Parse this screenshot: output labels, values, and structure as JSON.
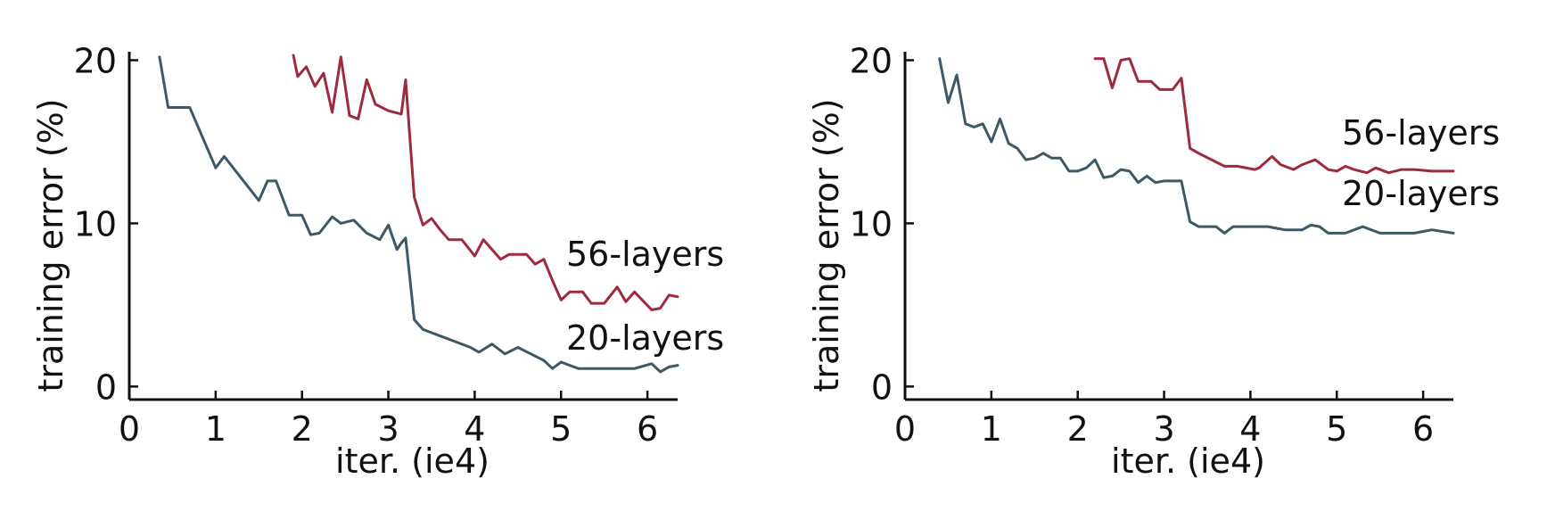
{
  "chart_data": [
    {
      "type": "line",
      "xlabel": "iter. (ie4)",
      "ylabel": "training error (%)",
      "xlim": [
        0,
        6.35
      ],
      "ylim": [
        -0.8,
        20.3
      ],
      "xticks": [
        0,
        1,
        2,
        3,
        4,
        5,
        6
      ],
      "yticks": [
        0,
        10,
        20
      ],
      "grid": false,
      "legend": "inline labels at line ends",
      "series": [
        {
          "name": "56-layers",
          "color": "#9e2a3e",
          "x": [
            1.9,
            1.95,
            2.05,
            2.15,
            2.25,
            2.35,
            2.45,
            2.55,
            2.65,
            2.75,
            2.85,
            3.0,
            3.15,
            3.2,
            3.3,
            3.4,
            3.5,
            3.6,
            3.7,
            3.85,
            4.0,
            4.1,
            4.3,
            4.4,
            4.6,
            4.7,
            4.8,
            4.9,
            5.0,
            5.1,
            5.25,
            5.35,
            5.5,
            5.65,
            5.75,
            5.85,
            6.05,
            6.15,
            6.25,
            6.35
          ],
          "y": [
            20.3,
            19.0,
            19.6,
            18.4,
            19.2,
            16.8,
            20.2,
            16.6,
            16.4,
            18.8,
            17.3,
            16.9,
            16.7,
            18.8,
            11.6,
            9.9,
            10.3,
            9.6,
            9.0,
            9.0,
            8.0,
            9.0,
            7.8,
            8.1,
            8.1,
            7.5,
            7.8,
            6.5,
            5.3,
            5.8,
            5.8,
            5.1,
            5.1,
            6.1,
            5.2,
            5.8,
            4.7,
            4.8,
            5.6,
            5.5
          ]
        },
        {
          "name": "20-layers",
          "color": "#3e5866",
          "x": [
            0.35,
            0.45,
            0.55,
            0.7,
            1.0,
            1.1,
            1.5,
            1.6,
            1.7,
            1.85,
            2.0,
            2.1,
            2.2,
            2.35,
            2.45,
            2.6,
            2.75,
            2.9,
            3.0,
            3.1,
            3.15,
            3.2,
            3.3,
            3.4,
            3.5,
            3.6,
            3.7,
            3.85,
            3.95,
            4.05,
            4.2,
            4.35,
            4.5,
            4.65,
            4.8,
            4.9,
            5.0,
            5.1,
            5.2,
            5.4,
            5.6,
            5.85,
            6.05,
            6.15,
            6.25,
            6.35
          ],
          "y": [
            20.2,
            17.1,
            17.1,
            17.1,
            13.4,
            14.1,
            11.4,
            12.6,
            12.6,
            10.5,
            10.5,
            9.3,
            9.4,
            10.4,
            10.0,
            10.2,
            9.4,
            9.0,
            9.9,
            8.4,
            8.8,
            9.1,
            4.1,
            3.5,
            3.3,
            3.1,
            2.9,
            2.6,
            2.4,
            2.1,
            2.6,
            2.0,
            2.4,
            2.0,
            1.6,
            1.1,
            1.5,
            1.3,
            1.1,
            1.1,
            1.1,
            1.1,
            1.4,
            0.9,
            1.2,
            1.3
          ]
        }
      ]
    },
    {
      "type": "line",
      "xlabel": "iter. (ie4)",
      "ylabel": "training error (%)",
      "xlim": [
        0,
        6.35
      ],
      "ylim": [
        -0.8,
        20.3
      ],
      "xticks": [
        0,
        1,
        2,
        3,
        4,
        5,
        6
      ],
      "yticks": [
        0,
        10,
        20
      ],
      "grid": false,
      "legend": "inline labels at line ends",
      "series": [
        {
          "name": "56-layers",
          "color": "#9e2a3e",
          "x": [
            2.2,
            2.3,
            2.4,
            2.5,
            2.6,
            2.7,
            2.85,
            2.95,
            3.1,
            3.2,
            3.3,
            3.4,
            3.55,
            3.7,
            3.85,
            4.05,
            4.1,
            4.25,
            4.35,
            4.5,
            4.6,
            4.75,
            4.9,
            5.0,
            5.1,
            5.2,
            5.35,
            5.45,
            5.6,
            5.75,
            5.9,
            6.1,
            6.35
          ],
          "y": [
            20.1,
            20.1,
            18.3,
            20.0,
            20.1,
            18.7,
            18.7,
            18.2,
            18.2,
            18.9,
            14.6,
            14.3,
            13.9,
            13.5,
            13.5,
            13.3,
            13.4,
            14.1,
            13.6,
            13.3,
            13.6,
            13.9,
            13.3,
            13.2,
            13.5,
            13.3,
            13.1,
            13.4,
            13.1,
            13.3,
            13.3,
            13.2,
            13.2
          ]
        },
        {
          "name": "20-layers",
          "color": "#3e5866",
          "x": [
            0.4,
            0.5,
            0.6,
            0.7,
            0.8,
            0.9,
            1.0,
            1.1,
            1.2,
            1.3,
            1.4,
            1.5,
            1.6,
            1.7,
            1.8,
            1.9,
            2.0,
            2.1,
            2.2,
            2.3,
            2.4,
            2.5,
            2.6,
            2.7,
            2.8,
            2.9,
            3.0,
            3.1,
            3.2,
            3.3,
            3.4,
            3.5,
            3.6,
            3.7,
            3.8,
            4.0,
            4.2,
            4.4,
            4.5,
            4.6,
            4.7,
            4.8,
            4.9,
            5.0,
            5.1,
            5.3,
            5.5,
            5.7,
            5.9,
            6.1,
            6.35
          ],
          "y": [
            20.1,
            17.4,
            19.1,
            16.1,
            15.9,
            16.1,
            15.0,
            16.4,
            14.9,
            14.6,
            13.9,
            14.0,
            14.3,
            14.0,
            14.0,
            13.2,
            13.2,
            13.4,
            13.9,
            12.8,
            12.9,
            13.3,
            13.2,
            12.5,
            12.9,
            12.5,
            12.6,
            12.6,
            12.6,
            10.1,
            9.8,
            9.8,
            9.8,
            9.4,
            9.8,
            9.8,
            9.8,
            9.6,
            9.6,
            9.6,
            9.9,
            9.8,
            9.4,
            9.4,
            9.4,
            9.8,
            9.4,
            9.4,
            9.4,
            9.6,
            9.4
          ]
        }
      ]
    }
  ]
}
